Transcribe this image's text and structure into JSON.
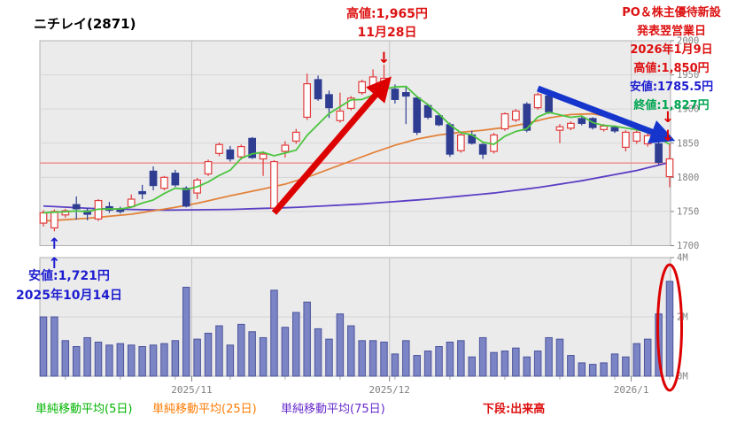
{
  "title": "ニチレイ(2871)",
  "annotations": {
    "peak": {
      "line1": "高値:1,965円",
      "line2": "11月28日"
    },
    "event": {
      "line1": "PO＆株主優待新設",
      "line2": "発表翌営業日",
      "line3": "2026年1月9日",
      "high": "高値:1,850円",
      "low": "安値:1785.5円",
      "close": "終値:1,827円"
    },
    "bottom_low": {
      "line1": "安値:1,721円",
      "line2": "2025年10月14日"
    },
    "volume_caption": "下段:出来高"
  },
  "legend": {
    "ma5": "単純移動平均(5日)",
    "ma25": "単純移動平均(25日)",
    "ma75": "単純移動平均(75日)"
  },
  "colors": {
    "annotation_red": "#dd1111",
    "annotation_blue": "#1d1dd0",
    "annotation_green": "#00a651",
    "legend_green": "#00b400",
    "legend_orange": "#ff7a00",
    "legend_purple": "#6629cc",
    "ma5_green": "#4cc43e",
    "ma25_orange": "#e2823a",
    "ma75_purple": "#5b3fc4",
    "bull_red": "#e23b3b",
    "bear_navy": "#2e3d92",
    "volume_fill": "#7b84c4",
    "volume_stroke": "#4d559c",
    "reference_pink": "#f08080",
    "axis_gray": "#808080",
    "grid": "#d6d6d6",
    "month_grid": "#c4c4c4",
    "plot_border": "#b0b0b0",
    "plot_bg": "#ebebec",
    "arrow_red": "#dd0000",
    "arrow_blue": "#1535cc"
  },
  "chart_data": {
    "type": "candlestick+volume",
    "title": "ニチレイ(2871)",
    "price_axis": {
      "min": 1700,
      "max": 2000,
      "tick_step": 50,
      "ticks": [
        2000,
        1950,
        1900,
        1850,
        1800,
        1750,
        1700
      ]
    },
    "volume_axis": {
      "max_millions": 4,
      "ticks": [
        {
          "v": 4,
          "label": "4M"
        },
        {
          "v": 2,
          "label": "2M"
        },
        {
          "v": 0,
          "label": "0M"
        }
      ]
    },
    "x_labels": [
      "2025/11",
      "2025/12",
      "2026/1"
    ],
    "month_boundaries_after_index": [
      14,
      32,
      54
    ],
    "reference_line_price": 1821,
    "candles_ohlc": [
      [
        1733,
        1752,
        1728,
        1748
      ],
      [
        1726,
        1753,
        1721,
        1750
      ],
      [
        1745,
        1754,
        1741,
        1751
      ],
      [
        1760,
        1772,
        1738,
        1754
      ],
      [
        1751,
        1755,
        1737,
        1746
      ],
      [
        1739,
        1768,
        1736,
        1766
      ],
      [
        1757,
        1764,
        1748,
        1752
      ],
      [
        1754,
        1757,
        1747,
        1750
      ],
      [
        1757,
        1775,
        1755,
        1768
      ],
      [
        1779,
        1789,
        1768,
        1776
      ],
      [
        1809,
        1816,
        1781,
        1788
      ],
      [
        1784,
        1802,
        1781,
        1800
      ],
      [
        1806,
        1811,
        1786,
        1789
      ],
      [
        1784,
        1787,
        1756,
        1758
      ],
      [
        1777,
        1799,
        1768,
        1796
      ],
      [
        1805,
        1826,
        1802,
        1823
      ],
      [
        1835,
        1851,
        1831,
        1848
      ],
      [
        1840,
        1846,
        1823,
        1827
      ],
      [
        1830,
        1848,
        1826,
        1845
      ],
      [
        1857,
        1859,
        1827,
        1829
      ],
      [
        1827,
        1838,
        1802,
        1834
      ],
      [
        1755,
        1825,
        1752,
        1823
      ],
      [
        1838,
        1853,
        1829,
        1847
      ],
      [
        1853,
        1871,
        1849,
        1866
      ],
      [
        1888,
        1952,
        1884,
        1937
      ],
      [
        1943,
        1949,
        1912,
        1915
      ],
      [
        1921,
        1927,
        1887,
        1902
      ],
      [
        1883,
        1924,
        1880,
        1897
      ],
      [
        1901,
        1919,
        1898,
        1916
      ],
      [
        1924,
        1943,
        1921,
        1940
      ],
      [
        1928,
        1958,
        1925,
        1947
      ],
      [
        1939,
        1965,
        1931,
        1945
      ],
      [
        1929,
        1936,
        1908,
        1914
      ],
      [
        1924,
        1934,
        1878,
        1919
      ],
      [
        1916,
        1918,
        1862,
        1866
      ],
      [
        1905,
        1908,
        1885,
        1888
      ],
      [
        1890,
        1893,
        1875,
        1877
      ],
      [
        1877,
        1880,
        1830,
        1834
      ],
      [
        1839,
        1865,
        1836,
        1862
      ],
      [
        1862,
        1868,
        1848,
        1850
      ],
      [
        1848,
        1850,
        1827,
        1834
      ],
      [
        1838,
        1865,
        1835,
        1862
      ],
      [
        1871,
        1895,
        1868,
        1893
      ],
      [
        1884,
        1900,
        1881,
        1897
      ],
      [
        1907,
        1910,
        1866,
        1869
      ],
      [
        1902,
        1924,
        1899,
        1921
      ],
      [
        1919,
        1922,
        1893,
        1896
      ],
      [
        1869,
        1878,
        1850,
        1874
      ],
      [
        1872,
        1882,
        1869,
        1879
      ],
      [
        1886,
        1889,
        1876,
        1879
      ],
      [
        1886,
        1888,
        1870,
        1873
      ],
      [
        1870,
        1878,
        1867,
        1875
      ],
      [
        1873,
        1876,
        1865,
        1868
      ],
      [
        1844,
        1869,
        1838,
        1866
      ],
      [
        1853,
        1869,
        1849,
        1866
      ],
      [
        1849,
        1864,
        1845,
        1861
      ],
      [
        1849,
        1852,
        1818,
        1822
      ],
      [
        1801,
        1850,
        1785.5,
        1827
      ]
    ],
    "volumes_millions": [
      2.0,
      2.0,
      1.2,
      1.0,
      1.3,
      1.15,
      1.05,
      1.1,
      1.05,
      1.0,
      1.05,
      1.1,
      1.2,
      3.0,
      1.25,
      1.45,
      1.7,
      1.05,
      1.75,
      1.5,
      1.3,
      2.9,
      1.65,
      2.15,
      2.5,
      1.6,
      1.25,
      2.1,
      1.7,
      1.2,
      1.2,
      1.15,
      0.75,
      1.2,
      0.7,
      0.85,
      1.0,
      1.15,
      1.2,
      0.65,
      1.3,
      0.8,
      0.85,
      0.95,
      0.65,
      0.85,
      1.3,
      1.25,
      0.7,
      0.45,
      0.4,
      0.45,
      0.75,
      0.65,
      1.1,
      1.25,
      2.1,
      3.2
    ],
    "ma25_points": [
      [
        1,
        1736
      ],
      [
        5,
        1740
      ],
      [
        9,
        1746
      ],
      [
        13,
        1756
      ],
      [
        15,
        1762
      ],
      [
        18,
        1773
      ],
      [
        21,
        1783
      ],
      [
        23,
        1790
      ],
      [
        25,
        1800
      ],
      [
        27,
        1812
      ],
      [
        29,
        1824
      ],
      [
        31,
        1836
      ],
      [
        33,
        1847
      ],
      [
        35,
        1856
      ],
      [
        37,
        1862
      ],
      [
        39,
        1866
      ],
      [
        41,
        1869
      ],
      [
        43,
        1873
      ],
      [
        45,
        1879
      ],
      [
        47,
        1887
      ],
      [
        49,
        1892
      ],
      [
        51,
        1893
      ],
      [
        52,
        1890
      ],
      [
        54,
        1882
      ],
      [
        56,
        1871
      ],
      [
        58,
        1858
      ]
    ],
    "ma75_points": [
      [
        1,
        1758
      ],
      [
        6,
        1754
      ],
      [
        12,
        1752
      ],
      [
        18,
        1753
      ],
      [
        24,
        1756
      ],
      [
        30,
        1761
      ],
      [
        36,
        1768
      ],
      [
        42,
        1777
      ],
      [
        46,
        1785
      ],
      [
        50,
        1795
      ],
      [
        53,
        1804
      ],
      [
        55,
        1810
      ],
      [
        57,
        1818
      ],
      [
        58,
        1822
      ]
    ],
    "markers": {
      "rally_arrow": {
        "from_candle": 22,
        "from_price": 1748,
        "to_candle": 32,
        "to_price": 1938
      },
      "decline_arrow": {
        "from_candle": 46,
        "from_price": 1930,
        "to_candle": 58,
        "to_price": 1858
      },
      "peak_down_arrow_candle": 32,
      "last_down_arrows_candle": 58,
      "low_up_arrows_candle": 2,
      "volume_ellipse_candle": 58
    }
  }
}
